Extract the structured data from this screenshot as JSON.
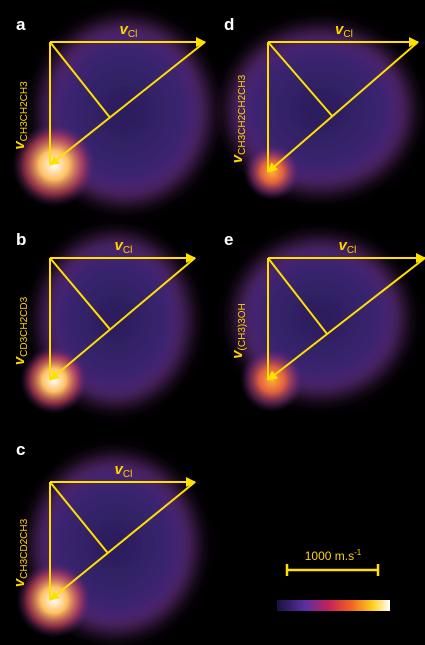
{
  "panels": [
    {
      "letter": "a",
      "horizontal": {
        "symbol": "v",
        "subscript": "Cl"
      },
      "vertical": {
        "symbol": "v",
        "subscript": "CH3CH2CH3"
      }
    },
    {
      "letter": "b",
      "horizontal": {
        "symbol": "v",
        "subscript": "Cl"
      },
      "vertical": {
        "symbol": "v",
        "subscript": "CD3CH2CD3"
      }
    },
    {
      "letter": "c",
      "horizontal": {
        "symbol": "v",
        "subscript": "Cl"
      },
      "vertical": {
        "symbol": "v",
        "subscript": "CH3CD2CH3"
      }
    },
    {
      "letter": "d",
      "horizontal": {
        "symbol": "v",
        "subscript": "Cl"
      },
      "vertical": {
        "symbol": "v",
        "subscript": "CH3CH2CH2CH3"
      }
    },
    {
      "letter": "e",
      "horizontal": {
        "symbol": "v",
        "subscript": "Cl"
      },
      "vertical": {
        "symbol": "v",
        "subscript": "(CH3)3OH"
      }
    }
  ],
  "scale_bar": {
    "label": "1000 m.s",
    "superscript": "-1"
  }
}
